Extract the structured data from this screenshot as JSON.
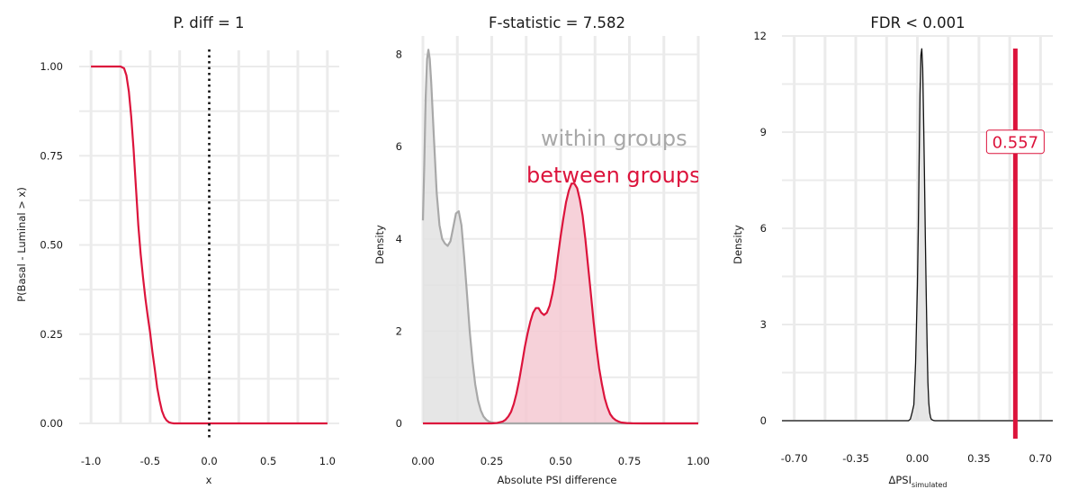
{
  "panels": [
    {
      "title": "P. diff = 1"
    },
    {
      "title": "F-statistic = 7.582"
    },
    {
      "title": "FDR < 0.001"
    }
  ],
  "chart_data": [
    {
      "type": "line",
      "title": "P. diff = 1",
      "xlabel": "x",
      "ylabel": "P(Basal - Luminal > x)",
      "xlim": [
        -1.1,
        1.1
      ],
      "ylim": [
        0,
        1
      ],
      "x_ticks": [
        -1.0,
        -0.5,
        0.0,
        0.5,
        1.0
      ],
      "x_tick_labels": [
        "-1.0",
        "-0.5",
        "0.0",
        "0.5",
        "1.0"
      ],
      "y_ticks": [
        0,
        0.25,
        0.5,
        0.75,
        1.0
      ],
      "y_tick_labels": [
        "0.00",
        "0.25",
        "0.50",
        "0.75",
        "1.00"
      ],
      "grid": true,
      "reference_line": {
        "x": 0.0,
        "style": "dotted",
        "color": "#111111"
      },
      "series": [
        {
          "color": "#dc143c",
          "x": [
            -1.0,
            -0.75,
            -0.72,
            -0.7,
            -0.68,
            -0.66,
            -0.64,
            -0.62,
            -0.6,
            -0.58,
            -0.56,
            -0.54,
            -0.52,
            -0.5,
            -0.48,
            -0.46,
            -0.44,
            -0.42,
            -0.4,
            -0.38,
            -0.36,
            -0.34,
            -0.32,
            -0.3,
            -0.28,
            -0.25,
            0.0,
            0.5,
            1.0
          ],
          "y": [
            1.0,
            1.0,
            0.995,
            0.975,
            0.93,
            0.86,
            0.77,
            0.66,
            0.555,
            0.475,
            0.41,
            0.35,
            0.3,
            0.255,
            0.2,
            0.15,
            0.1,
            0.065,
            0.035,
            0.018,
            0.008,
            0.003,
            0.001,
            0.0,
            0.0,
            0.0,
            0.0,
            0.0,
            0.0
          ]
        }
      ]
    },
    {
      "type": "area",
      "title": "F-statistic = 7.582",
      "xlabel": "Absolute PSI difference",
      "ylabel": "Density",
      "xlim": [
        0,
        1.0
      ],
      "ylim": [
        0,
        8.4
      ],
      "x_ticks": [
        0.0,
        0.25,
        0.5,
        0.75,
        1.0
      ],
      "x_tick_labels": [
        "0.00",
        "0.25",
        "0.50",
        "0.75",
        "1.00"
      ],
      "y_ticks": [
        0,
        2,
        4,
        6,
        8
      ],
      "y_tick_labels": [
        "0",
        "2",
        "4",
        "6",
        "8"
      ],
      "grid": true,
      "annotations": [
        {
          "text": "within groups",
          "color": "#a8a8a8"
        },
        {
          "text": "between groups",
          "color": "#dc143c"
        }
      ],
      "series": [
        {
          "color": "#a8a8a8",
          "fill": "#e2e2e2",
          "x": [
            0.0,
            0.005,
            0.01,
            0.015,
            0.02,
            0.025,
            0.03,
            0.04,
            0.05,
            0.06,
            0.07,
            0.08,
            0.09,
            0.1,
            0.11,
            0.12,
            0.13,
            0.14,
            0.15,
            0.16,
            0.17,
            0.18,
            0.19,
            0.2,
            0.21,
            0.22,
            0.23,
            0.24,
            0.25,
            0.26,
            0.27,
            0.28,
            0.29,
            0.3,
            0.35,
            0.5,
            0.75,
            1.0
          ],
          "y": [
            4.4,
            5.6,
            7.1,
            7.9,
            8.1,
            7.9,
            7.4,
            6.2,
            5.0,
            4.3,
            4.0,
            3.9,
            3.85,
            3.95,
            4.25,
            4.55,
            4.6,
            4.3,
            3.6,
            2.8,
            2.0,
            1.35,
            0.85,
            0.5,
            0.28,
            0.15,
            0.08,
            0.04,
            0.02,
            0.01,
            0.005,
            0.002,
            0.001,
            0.0,
            0.0,
            0.0,
            0.0,
            0.0
          ]
        },
        {
          "color": "#dc143c",
          "fill": "#f5c9d2",
          "x": [
            0.0,
            0.25,
            0.27,
            0.29,
            0.3,
            0.31,
            0.32,
            0.33,
            0.34,
            0.35,
            0.36,
            0.37,
            0.38,
            0.39,
            0.4,
            0.41,
            0.42,
            0.43,
            0.44,
            0.45,
            0.46,
            0.47,
            0.48,
            0.49,
            0.5,
            0.51,
            0.52,
            0.53,
            0.54,
            0.55,
            0.56,
            0.57,
            0.58,
            0.59,
            0.6,
            0.61,
            0.62,
            0.63,
            0.64,
            0.65,
            0.66,
            0.67,
            0.68,
            0.69,
            0.7,
            0.71,
            0.72,
            0.74,
            0.76,
            0.8,
            1.0
          ],
          "y": [
            0.0,
            0.0,
            0.01,
            0.04,
            0.08,
            0.15,
            0.25,
            0.42,
            0.65,
            0.95,
            1.3,
            1.65,
            1.95,
            2.2,
            2.4,
            2.5,
            2.5,
            2.4,
            2.35,
            2.4,
            2.55,
            2.8,
            3.15,
            3.6,
            4.05,
            4.45,
            4.8,
            5.05,
            5.2,
            5.2,
            5.1,
            4.85,
            4.5,
            4.0,
            3.4,
            2.8,
            2.2,
            1.65,
            1.2,
            0.85,
            0.55,
            0.35,
            0.2,
            0.12,
            0.07,
            0.04,
            0.02,
            0.008,
            0.002,
            0.0,
            0.0
          ]
        }
      ]
    },
    {
      "type": "area",
      "title": "FDR < 0.001",
      "xlabel": "ΔPSI",
      "xlabel_subscript": "simulated",
      "ylabel": "Density",
      "xlim": [
        -0.77,
        0.77
      ],
      "ylim": [
        0,
        12
      ],
      "x_ticks": [
        -0.7,
        -0.35,
        0.0,
        0.35,
        0.7
      ],
      "x_tick_labels": [
        "-0.70",
        "-0.35",
        "0.00",
        "0.35",
        "0.70"
      ],
      "y_ticks": [
        0,
        3,
        6,
        9,
        12
      ],
      "y_tick_labels": [
        "0",
        "3",
        "6",
        "9",
        "12"
      ],
      "grid": true,
      "observed_line": {
        "x": 0.557,
        "label": "0.557",
        "color": "#dc143c"
      },
      "series": [
        {
          "color": "#111111",
          "fill": "#e2e2e2",
          "x": [
            -0.77,
            -0.05,
            -0.04,
            -0.03,
            -0.02,
            -0.01,
            0.0,
            0.005,
            0.01,
            0.015,
            0.02,
            0.025,
            0.03,
            0.035,
            0.04,
            0.045,
            0.05,
            0.055,
            0.06,
            0.065,
            0.07,
            0.075,
            0.08,
            0.09,
            0.1,
            0.12,
            0.77
          ],
          "y": [
            0.0,
            0.0,
            0.05,
            0.25,
            0.5,
            1.8,
            4.2,
            6.0,
            8.2,
            10.2,
            11.4,
            11.6,
            11.0,
            9.6,
            7.8,
            5.8,
            4.0,
            2.4,
            1.2,
            0.55,
            0.25,
            0.1,
            0.04,
            0.01,
            0.0,
            0.0,
            0.0
          ]
        }
      ]
    }
  ]
}
